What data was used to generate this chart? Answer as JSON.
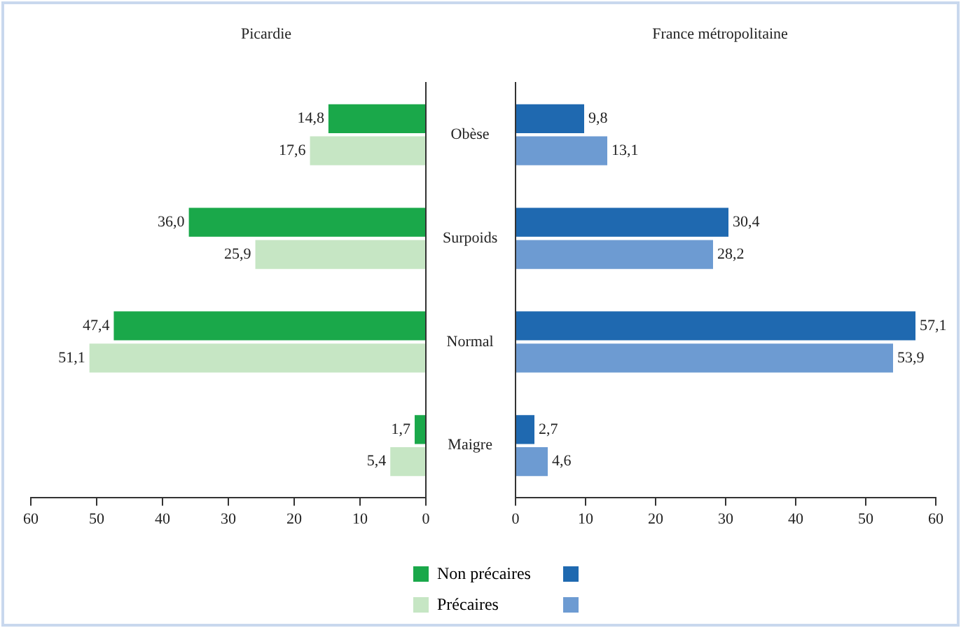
{
  "chart_data": [
    {
      "type": "bar",
      "orientation": "horizontal",
      "title": "Picardie",
      "categories": [
        "Obèse",
        "Surpoids",
        "Normal",
        "Maigre"
      ],
      "series": [
        {
          "name": "Non précaires",
          "color": "#1aa84a",
          "values": [
            14.8,
            36.0,
            47.4,
            1.7
          ],
          "value_labels": [
            "14,8",
            "36,0",
            "47,4",
            "1,7"
          ]
        },
        {
          "name": "Précaires",
          "color": "#c6e6c4",
          "values": [
            17.6,
            25.9,
            51.1,
            5.4
          ],
          "value_labels": [
            "17,6",
            "25,9",
            "51,1",
            "5,4"
          ]
        }
      ],
      "xlim": [
        60,
        0
      ],
      "xticks": [
        60,
        50,
        40,
        30,
        20,
        10,
        0
      ],
      "legend": "bottom"
    },
    {
      "type": "bar",
      "orientation": "horizontal",
      "title": "France métropolitaine",
      "categories": [
        null,
        null,
        null,
        null
      ],
      "series": [
        {
          "color": "#1f69b0",
          "values": [
            9.8,
            30.4,
            57.1,
            2.7
          ],
          "value_labels": [
            "9,8",
            "30,4",
            "57,1",
            "2,7"
          ]
        },
        {
          "color": "#6d9bd2",
          "values": [
            13.1,
            28.2,
            53.9,
            4.6
          ],
          "value_labels": [
            "13,1",
            "28,2",
            "53,9",
            "4,6"
          ]
        }
      ],
      "xlim": [
        0,
        60
      ],
      "xticks": [
        0,
        10,
        20,
        30,
        40,
        50,
        60
      ],
      "tick_labels": "x"
    }
  ]
}
